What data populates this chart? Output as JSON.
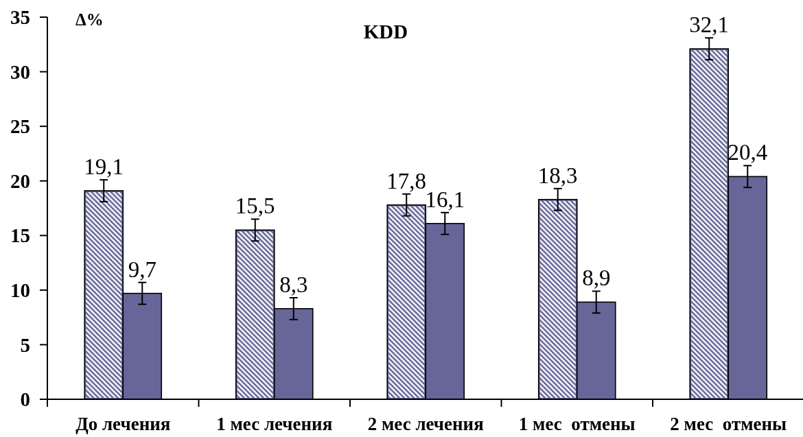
{
  "chart_data": {
    "type": "bar",
    "title": "KDD",
    "ylabel": "Δ%",
    "categories": [
      "До лечения",
      "1 мес лечения",
      "2 мес лечения",
      "1 мес  отмены",
      "2 мес  отмены"
    ],
    "series": [
      {
        "color": "#666699",
        "values": [
          19.1,
          15.5,
          17.8,
          18.3,
          32.1
        ],
        "errors": [
          1,
          1,
          1,
          1,
          1
        ],
        "value_labels": [
          "19,1",
          "15,5",
          "17,8",
          "18,3",
          "32,1"
        ]
      },
      {
        "color": "#666699",
        "values": [
          9.7,
          8.3,
          16.1,
          8.9,
          20.4
        ],
        "errors": [
          1,
          1,
          1,
          1,
          1
        ],
        "value_labels": [
          "9,7",
          "8,3",
          "16,1",
          "8,9",
          "20,4"
        ]
      }
    ],
    "ylim": [
      0,
      35
    ],
    "yticks": [
      0,
      5,
      10,
      15,
      20,
      25,
      30,
      35
    ]
  }
}
